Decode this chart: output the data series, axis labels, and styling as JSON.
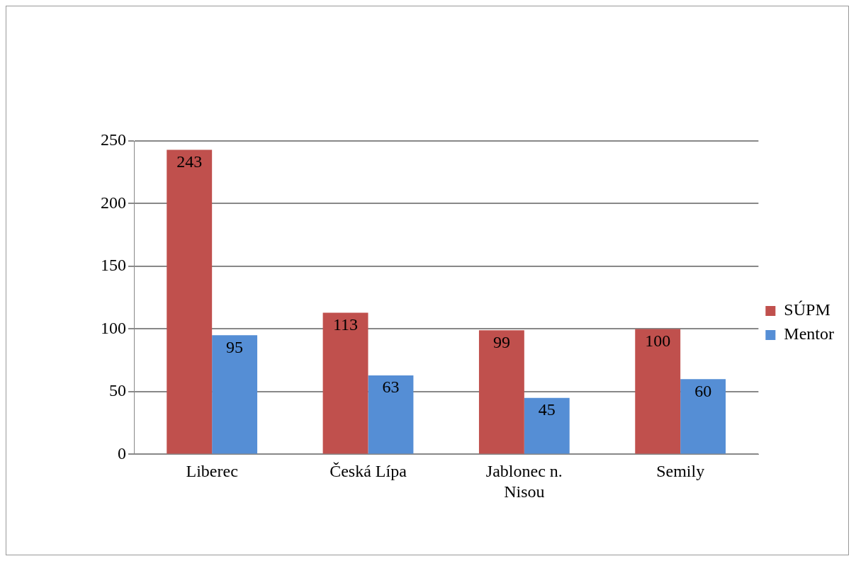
{
  "chart_data": {
    "type": "bar",
    "categories": [
      "Liberec",
      "Česká Lípa",
      "Jablonec n. Nisou",
      "Semily"
    ],
    "series": [
      {
        "name": "SÚPM",
        "color": "#c0504d",
        "values": [
          243,
          113,
          99,
          100
        ]
      },
      {
        "name": "Mentor",
        "color": "#558ed5",
        "values": [
          95,
          63,
          45,
          60
        ]
      }
    ],
    "ylim": [
      0,
      250
    ],
    "yticks": [
      0,
      50,
      100,
      150,
      200,
      250
    ],
    "grid": "y",
    "legend": "right",
    "data_labels": true
  }
}
